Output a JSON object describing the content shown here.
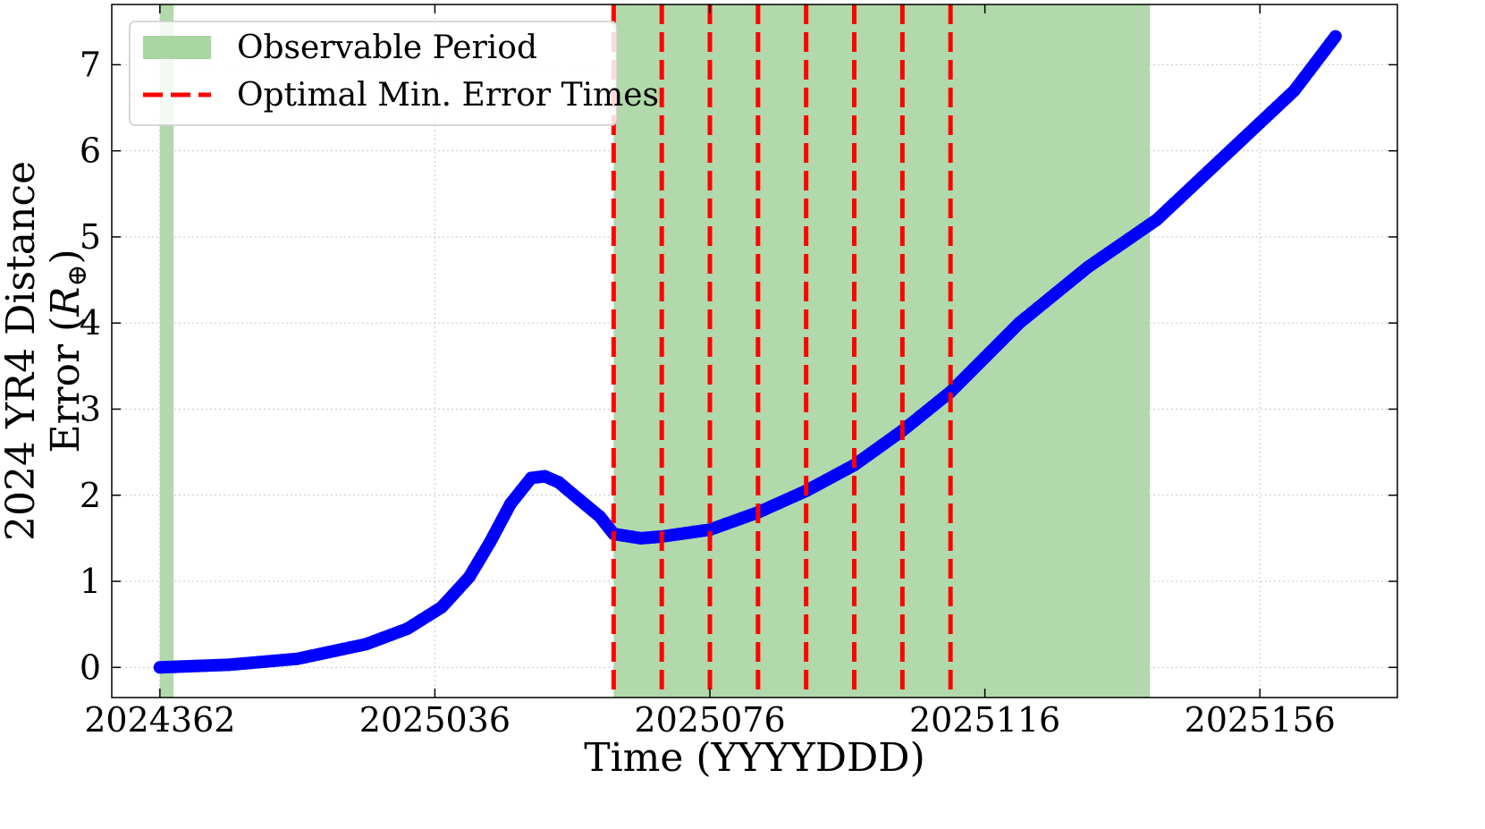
{
  "chart_data": {
    "type": "line",
    "xlabel": "Time (YYYYDDD)",
    "ylabel_line1": "2024 YR4 Distance",
    "ylabel_line2": "Error (",
    "ylabel_symbol": "R",
    "ylabel_subscript": "⊕",
    "ylabel_close": ")",
    "xlim": [
      "2024-12-20",
      "2025-06-25"
    ],
    "ylim": [
      -0.35,
      7.7
    ],
    "grid": true,
    "legend_position": "top-left",
    "x_ticks": [
      {
        "date": "2024-12-27",
        "label": "2024362"
      },
      {
        "date": "2025-02-05",
        "label": "2025036"
      },
      {
        "date": "2025-03-17",
        "label": "2025076"
      },
      {
        "date": "2025-04-26",
        "label": "2025116"
      },
      {
        "date": "2025-06-05",
        "label": "2025156"
      }
    ],
    "y_ticks": [
      {
        "value": 0,
        "label": "0"
      },
      {
        "value": 1,
        "label": "1"
      },
      {
        "value": 2,
        "label": "2"
      },
      {
        "value": 3,
        "label": "3"
      },
      {
        "value": 4,
        "label": "4"
      },
      {
        "value": 5,
        "label": "5"
      },
      {
        "value": 6,
        "label": "6"
      },
      {
        "value": 7,
        "label": "7"
      }
    ],
    "observable_periods": [
      {
        "start": "2024-12-27",
        "end": "2024-12-29"
      },
      {
        "start": "2025-03-03",
        "end": "2025-05-20"
      }
    ],
    "optimal_min_error_times": [
      "2025-03-03",
      "2025-03-10",
      "2025-03-17",
      "2025-03-24",
      "2025-03-31",
      "2025-04-07",
      "2025-04-14",
      "2025-04-21"
    ],
    "legend": [
      {
        "label": "Observable Period",
        "color": "#a8d5a2"
      },
      {
        "label": "Optimal Min. Error Times",
        "color": "#ff0000"
      }
    ],
    "series": [
      {
        "color": "#0000ff",
        "points": [
          [
            "2024-12-27",
            0.0
          ],
          [
            "2025-01-06",
            0.03
          ],
          [
            "2025-01-16",
            0.1
          ],
          [
            "2025-01-26",
            0.27
          ],
          [
            "2025-02-01",
            0.45
          ],
          [
            "2025-02-06",
            0.7
          ],
          [
            "2025-02-10",
            1.05
          ],
          [
            "2025-02-13",
            1.45
          ],
          [
            "2025-02-16",
            1.9
          ],
          [
            "2025-02-19",
            2.2
          ],
          [
            "2025-02-21",
            2.22
          ],
          [
            "2025-02-23",
            2.15
          ],
          [
            "2025-02-26",
            1.95
          ],
          [
            "2025-03-01",
            1.75
          ],
          [
            "2025-03-03",
            1.55
          ],
          [
            "2025-03-07",
            1.5
          ],
          [
            "2025-03-10",
            1.52
          ],
          [
            "2025-03-17",
            1.6
          ],
          [
            "2025-03-24",
            1.8
          ],
          [
            "2025-03-31",
            2.05
          ],
          [
            "2025-04-07",
            2.35
          ],
          [
            "2025-04-14",
            2.75
          ],
          [
            "2025-04-21",
            3.2
          ],
          [
            "2025-05-01",
            4.0
          ],
          [
            "2025-05-11",
            4.65
          ],
          [
            "2025-05-21",
            5.2
          ],
          [
            "2025-05-31",
            5.95
          ],
          [
            "2025-06-10",
            6.7
          ],
          [
            "2025-06-16",
            7.33
          ]
        ]
      }
    ]
  }
}
